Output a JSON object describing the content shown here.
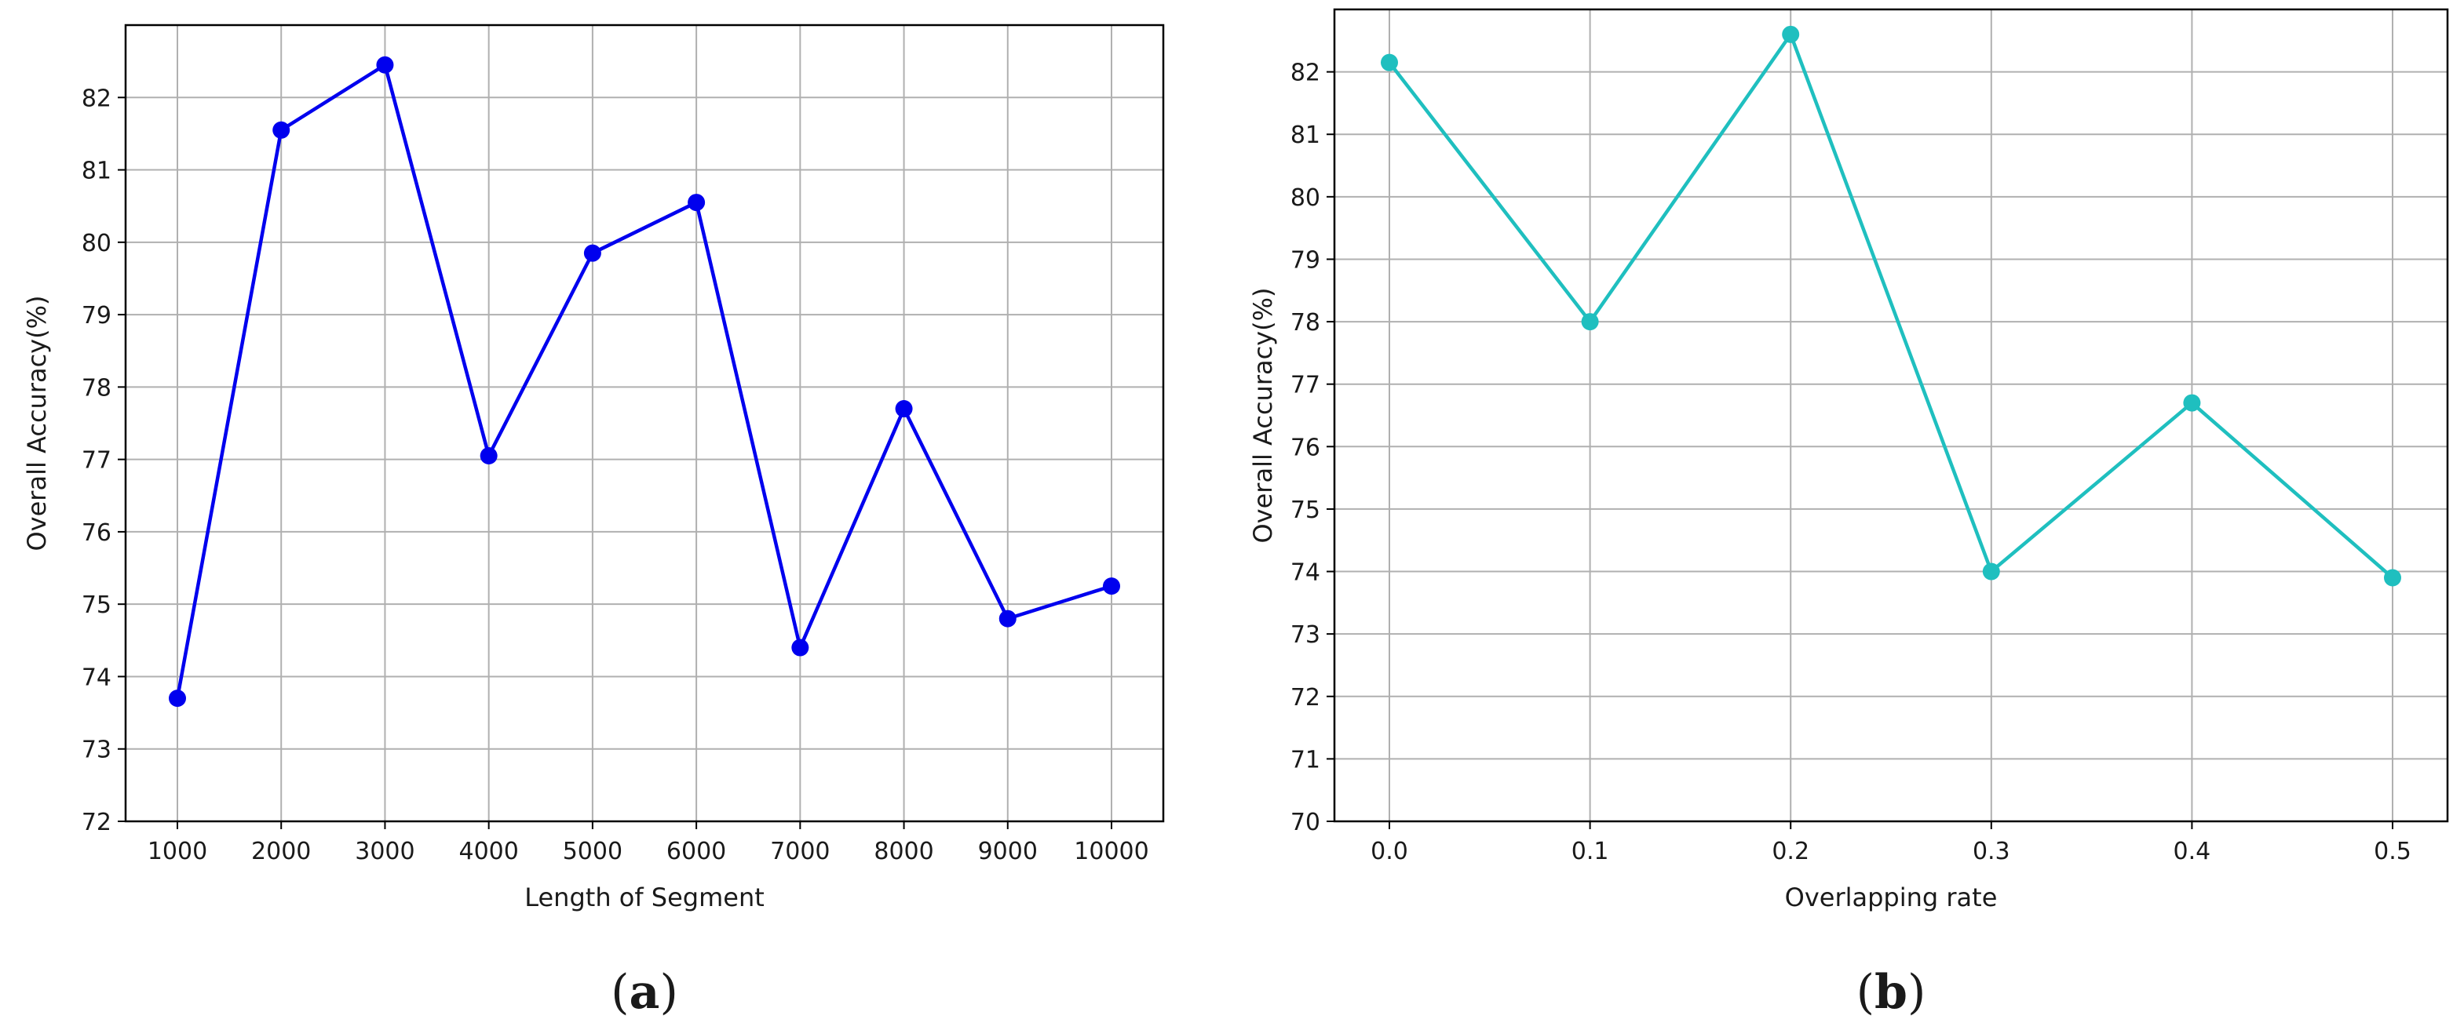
{
  "chart_data": [
    {
      "type": "line",
      "panel_label": "a",
      "xlabel": "Length of Segment",
      "ylabel": "Overall Accuracy(%)",
      "categories": [
        "1000",
        "2000",
        "3000",
        "4000",
        "5000",
        "6000",
        "7000",
        "8000",
        "9000",
        "10000"
      ],
      "x": [
        1000,
        2000,
        3000,
        4000,
        5000,
        6000,
        7000,
        8000,
        9000,
        10000
      ],
      "values": [
        73.7,
        81.55,
        82.45,
        77.05,
        79.85,
        80.55,
        74.4,
        77.7,
        74.8,
        75.25
      ],
      "ylim": [
        72,
        83
      ],
      "yticks": [
        72,
        73,
        74,
        75,
        76,
        77,
        78,
        79,
        80,
        81,
        82
      ],
      "color": "#0000ee",
      "grid": true
    },
    {
      "type": "line",
      "panel_label": "b",
      "xlabel": "Overlapping rate",
      "ylabel": "Overall Accuracy(%)",
      "categories": [
        "0.0",
        "0.1",
        "0.2",
        "0.3",
        "0.4",
        "0.5"
      ],
      "x": [
        0.0,
        0.1,
        0.2,
        0.3,
        0.4,
        0.5
      ],
      "values": [
        82.15,
        78.0,
        82.6,
        74.0,
        76.7,
        73.9
      ],
      "ylim": [
        70,
        83
      ],
      "yticks": [
        70,
        71,
        72,
        73,
        74,
        75,
        76,
        77,
        78,
        79,
        80,
        81,
        82
      ],
      "color": "#1fbfbf",
      "grid": true
    }
  ]
}
